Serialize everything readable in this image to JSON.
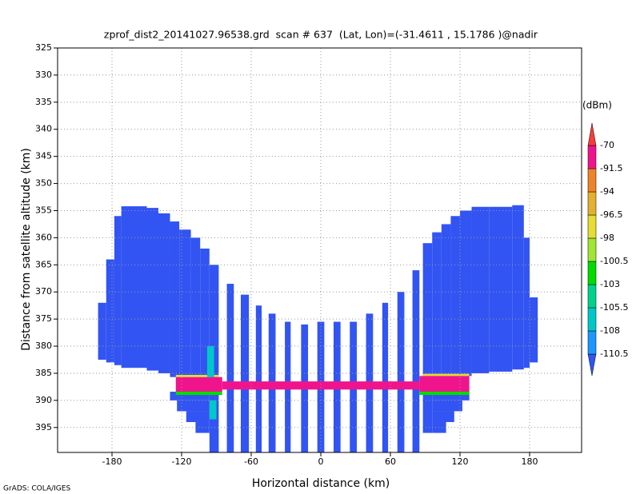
{
  "chart_data": {
    "type": "shaded-field",
    "title": "zprof_dist2_20141027.96538.grd  scan # 637  (Lat, Lon)=(-31.4611 , 15.1786 )@nadir",
    "x_label": "Horizontal distance (km)",
    "y_label": "Distance from satellite altitude (km)",
    "footer": "GrADS: COLA/IGES",
    "xlim": [
      -226.9,
      224.8
    ],
    "xticks": [
      -180,
      -120,
      -60,
      0,
      60,
      120,
      180
    ],
    "ylim": [
      325,
      399.6
    ],
    "y_inverted": true,
    "yticks": [
      325,
      330,
      335,
      340,
      345,
      350,
      355,
      360,
      365,
      370,
      375,
      380,
      385,
      390,
      395
    ],
    "grid": true,
    "colorbar": {
      "unit": "(dBm)",
      "levels": [
        -110.5,
        -108,
        -105.5,
        -103,
        -100.5,
        -98,
        -96.5,
        -94,
        -91.5,
        -70
      ],
      "colors": [
        "#3254f2",
        "#1e96ff",
        "#00c8c8",
        "#00d28c",
        "#00dc00",
        "#a0e632",
        "#e6dc32",
        "#e6af2d",
        "#f08228",
        "#f0148c",
        "#fa3c3c"
      ]
    },
    "cells": [
      {
        "x": [
          -192,
          -185
        ],
        "y": [
          372,
          382.5
        ],
        "value": -112
      },
      {
        "x": [
          -185,
          -178
        ],
        "y": [
          364,
          383
        ],
        "value": -112
      },
      {
        "x": [
          -178,
          -172
        ],
        "y": [
          356,
          383.5
        ],
        "value": -112
      },
      {
        "x": [
          -172,
          -150
        ],
        "y": [
          354.2,
          384
        ],
        "value": -112
      },
      {
        "x": [
          -150,
          -140
        ],
        "y": [
          354.5,
          384.5
        ],
        "value": -112
      },
      {
        "x": [
          -140,
          -130
        ],
        "y": [
          355.5,
          385
        ],
        "value": -112
      },
      {
        "x": [
          -130,
          -122
        ],
        "y": [
          357,
          385.7
        ],
        "value": -112
      },
      {
        "x": [
          -122,
          -112
        ],
        "y": [
          358.5,
          385.7
        ],
        "value": -112
      },
      {
        "x": [
          -112,
          -104
        ],
        "y": [
          360,
          385.7
        ],
        "value": -112
      },
      {
        "x": [
          -104,
          -96
        ],
        "y": [
          362,
          385.7
        ],
        "value": -112
      },
      {
        "x": [
          -96,
          -88
        ],
        "y": [
          365,
          399.6
        ],
        "value": -112
      },
      {
        "x": [
          -130,
          -96
        ],
        "y": [
          388.4,
          390
        ],
        "value": -112
      },
      {
        "x": [
          -124,
          -96
        ],
        "y": [
          390,
          392
        ],
        "value": -112
      },
      {
        "x": [
          -116,
          -96
        ],
        "y": [
          392,
          394
        ],
        "value": -112
      },
      {
        "x": [
          -108,
          -96
        ],
        "y": [
          394,
          396
        ],
        "value": -112
      },
      {
        "x": [
          -81,
          -75
        ],
        "y": [
          368.5,
          399.6
        ],
        "value": -112
      },
      {
        "x": [
          -69,
          -62
        ],
        "y": [
          370.5,
          399.6
        ],
        "value": -112
      },
      {
        "x": [
          -56,
          -51
        ],
        "y": [
          372.5,
          399.6
        ],
        "value": -112
      },
      {
        "x": [
          -45,
          -39
        ],
        "y": [
          374,
          399.6
        ],
        "value": -112
      },
      {
        "x": [
          -31,
          -26
        ],
        "y": [
          375.5,
          399.6
        ],
        "value": -112
      },
      {
        "x": [
          -17,
          -11
        ],
        "y": [
          376,
          399.6
        ],
        "value": -112
      },
      {
        "x": [
          -3,
          3
        ],
        "y": [
          375.5,
          399.6
        ],
        "value": -112
      },
      {
        "x": [
          11,
          17
        ],
        "y": [
          375.5,
          399.6
        ],
        "value": -112
      },
      {
        "x": [
          25,
          31
        ],
        "y": [
          375.5,
          399.6
        ],
        "value": -112
      },
      {
        "x": [
          39,
          45
        ],
        "y": [
          374,
          399.6
        ],
        "value": -112
      },
      {
        "x": [
          53,
          58
        ],
        "y": [
          372,
          399.6
        ],
        "value": -112
      },
      {
        "x": [
          66,
          72
        ],
        "y": [
          370,
          399.6
        ],
        "value": -112
      },
      {
        "x": [
          79,
          85
        ],
        "y": [
          366,
          399.6
        ],
        "value": -112
      },
      {
        "x": [
          88,
          96
        ],
        "y": [
          361,
          396
        ],
        "value": -112
      },
      {
        "x": [
          96,
          104
        ],
        "y": [
          359,
          385.7
        ],
        "value": -112
      },
      {
        "x": [
          104,
          112
        ],
        "y": [
          357.5,
          385.7
        ],
        "value": -112
      },
      {
        "x": [
          112,
          120
        ],
        "y": [
          356,
          385.7
        ],
        "value": -112
      },
      {
        "x": [
          120,
          130
        ],
        "y": [
          355,
          385.5
        ],
        "value": -112
      },
      {
        "x": [
          130,
          145
        ],
        "y": [
          354.3,
          385
        ],
        "value": -112
      },
      {
        "x": [
          145,
          165
        ],
        "y": [
          354.3,
          384.7
        ],
        "value": -112
      },
      {
        "x": [
          165,
          175
        ],
        "y": [
          354,
          384.3
        ],
        "value": -112
      },
      {
        "x": [
          175,
          180
        ],
        "y": [
          360,
          384
        ],
        "value": -112
      },
      {
        "x": [
          180,
          187
        ],
        "y": [
          371,
          383
        ],
        "value": -112
      },
      {
        "x": [
          96,
          128
        ],
        "y": [
          388.4,
          390
        ],
        "value": -112
      },
      {
        "x": [
          96,
          122
        ],
        "y": [
          390,
          392
        ],
        "value": -112
      },
      {
        "x": [
          96,
          115
        ],
        "y": [
          392,
          394
        ],
        "value": -112
      },
      {
        "x": [
          96,
          108
        ],
        "y": [
          394,
          396
        ],
        "value": -112
      },
      {
        "x": [
          -125,
          -85
        ],
        "y": [
          385.7,
          388.4
        ],
        "value": -85
      },
      {
        "x": [
          -85,
          85
        ],
        "y": [
          386.5,
          388
        ],
        "value": -88
      },
      {
        "x": [
          85,
          128
        ],
        "y": [
          385.5,
          388.4
        ],
        "value": -85
      },
      {
        "x": [
          -125,
          -85
        ],
        "y": [
          388.4,
          389
        ],
        "value": -101
      },
      {
        "x": [
          85,
          128
        ],
        "y": [
          388.4,
          389
        ],
        "value": -101
      },
      {
        "x": [
          -125,
          -88
        ],
        "y": [
          385.3,
          385.7
        ],
        "value": -97
      },
      {
        "x": [
          88,
          128
        ],
        "y": [
          385.1,
          385.5
        ],
        "value": -97
      },
      {
        "x": [
          -98,
          -92
        ],
        "y": [
          380,
          385.7
        ],
        "value": -107
      },
      {
        "x": [
          -96,
          -90
        ],
        "y": [
          390,
          393.5
        ],
        "value": -107
      }
    ]
  }
}
